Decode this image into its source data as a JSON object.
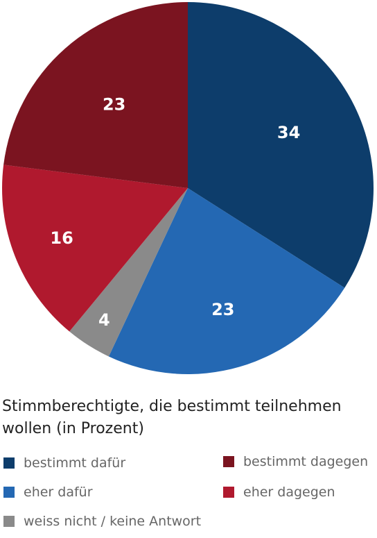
{
  "chart_data": {
    "type": "pie",
    "title": "Stimmberechtigte, die bestimmt teilnehmen wollen (in Prozent)",
    "slices": [
      {
        "name": "bestimmt dafür",
        "value": 34,
        "color": "#0d3d6b"
      },
      {
        "name": "eher dafür",
        "value": 23,
        "color": "#2468b3"
      },
      {
        "name": "weiss nicht / keine Antwort",
        "value": 4,
        "color": "#8a8a8a"
      },
      {
        "name": "eher dagegen",
        "value": 16,
        "color": "#b0192e"
      },
      {
        "name": "bestimmt dagegen",
        "value": 23,
        "color": "#7b1420"
      }
    ],
    "legend_placement": "bottom"
  }
}
